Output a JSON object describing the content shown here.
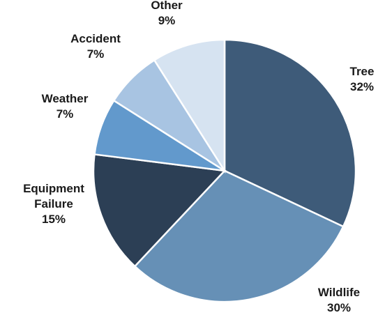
{
  "chart_data": {
    "type": "pie",
    "start_angle_deg": 0,
    "direction": "clockwise",
    "slices": [
      {
        "category": "Tree",
        "label_lines": [
          "Tree"
        ],
        "value": 32,
        "value_label": "32%",
        "color": "#3e5b79"
      },
      {
        "category": "Wildlife",
        "label_lines": [
          "Wildlife"
        ],
        "value": 30,
        "value_label": "30%",
        "color": "#6690b6"
      },
      {
        "category": "Equipment Failure",
        "label_lines": [
          "Equipment",
          "Failure"
        ],
        "value": 15,
        "value_label": "15%",
        "color": "#2c3f55"
      },
      {
        "category": "Weather",
        "label_lines": [
          "Weather"
        ],
        "value": 7,
        "value_label": "7%",
        "color": "#6299cc"
      },
      {
        "category": "Accident",
        "label_lines": [
          "Accident"
        ],
        "value": 7,
        "value_label": "7%",
        "color": "#a8c4e2"
      },
      {
        "category": "Other",
        "label_lines": [
          "Other"
        ],
        "value": 9,
        "value_label": "9%",
        "color": "#d6e3f1"
      }
    ]
  }
}
